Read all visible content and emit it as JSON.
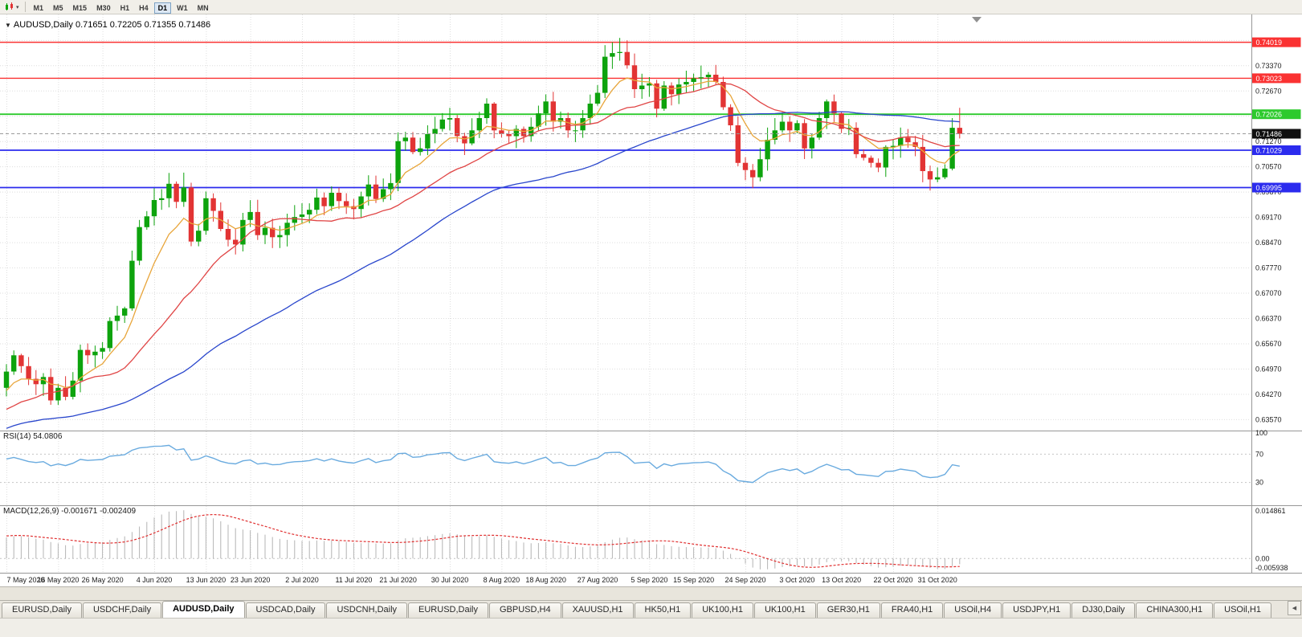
{
  "colors": {
    "bull": "#0da30d",
    "bear": "#e23434",
    "hline_red": "#fa3232",
    "hline_green": "#2dca2d",
    "hline_blue": "#2b2bee",
    "current_price_bg": "#101010",
    "ma_fast": "#e8a53a",
    "ma_mid": "#e04545",
    "ma_slow": "#2946cc",
    "rsi_line": "#6aabdf",
    "macd_hist": "#b4b4b4",
    "macd_signal": "#e03030",
    "grid": "#dedede",
    "axis_text": "#1c1c1c",
    "separator": "#979797"
  },
  "toolbar": {
    "timeframes": [
      "M1",
      "M5",
      "M15",
      "M30",
      "H1",
      "H4",
      "D1",
      "W1",
      "MN"
    ],
    "active": "D1"
  },
  "chart": {
    "symbol": "AUDUSD,Daily",
    "ohlc": "0.71651 0.72205 0.71355 0.71486",
    "dropdown_icon": "▼"
  },
  "rsi": {
    "label": "RSI(14) 54.0806",
    "period": 14,
    "value": 54.0806,
    "levels": [
      70,
      30
    ],
    "axis": [
      {
        "label": "100",
        "value": 100
      },
      {
        "label": "70",
        "value": 70
      },
      {
        "label": "30",
        "value": 30
      }
    ]
  },
  "macd": {
    "label": "MACD(12,26,9) -0.001671 -0.002409",
    "fast": 12,
    "slow": 26,
    "signal_period": 9,
    "main_value": -0.001671,
    "signal_value": -0.002409,
    "axis_max": "0.014861",
    "axis_zero": "0.00",
    "axis_min": "-0.005938"
  },
  "chart_data": {
    "type": "candlestick",
    "symbol": "AUDUSD",
    "timeframe": "Daily",
    "price_range": {
      "min": 0.634,
      "max": 0.747
    },
    "price_axis_ticks": [
      "0.74070",
      "0.73370",
      "0.72670",
      "0.71970",
      "0.71270",
      "0.70570",
      "0.69870",
      "0.69170",
      "0.68470",
      "0.67770",
      "0.67070",
      "0.66370",
      "0.65670",
      "0.64970",
      "0.64270",
      "0.63570"
    ],
    "hlines": [
      {
        "price": 0.74019,
        "label": "0.74019",
        "color_key": "hline_red",
        "width": 1.4
      },
      {
        "price": 0.73023,
        "label": "0.73023",
        "color_key": "hline_red",
        "width": 1.4
      },
      {
        "price": 0.72026,
        "label": "0.72026",
        "color_key": "hline_green",
        "width": 1.8
      },
      {
        "price": 0.71029,
        "label": "0.71029",
        "color_key": "hline_blue",
        "width": 1.8
      },
      {
        "price": 0.69995,
        "label": "0.69995",
        "color_key": "hline_blue",
        "width": 1.8
      }
    ],
    "current_price": {
      "value": 0.71486,
      "label": "0.71486"
    },
    "first_open": 0.616,
    "pre_closes": [
      0.613,
      0.605,
      0.6075,
      0.618,
      0.6185,
      0.632,
      0.6345,
      0.629,
      0.6355,
      0.632,
      0.6285,
      0.6345,
      0.636,
      0.631,
      0.627,
      0.634,
      0.6365,
      0.642,
      0.651,
      0.6565,
      0.651,
      0.6425,
      0.6372,
      0.639,
      0.6445
    ],
    "closes": [
      0.649,
      0.6535,
      0.6505,
      0.647,
      0.6455,
      0.6475,
      0.641,
      0.6445,
      0.642,
      0.6465,
      0.655,
      0.6535,
      0.6545,
      0.6555,
      0.663,
      0.6645,
      0.6665,
      0.6797,
      0.689,
      0.692,
      0.6965,
      0.697,
      0.701,
      0.696,
      0.7,
      0.685,
      0.688,
      0.697,
      0.6935,
      0.6885,
      0.6855,
      0.6842,
      0.691,
      0.6932,
      0.6868,
      0.6888,
      0.6862,
      0.6868,
      0.6902,
      0.6918,
      0.6925,
      0.6938,
      0.6972,
      0.6948,
      0.6985,
      0.6962,
      0.6948,
      0.694,
      0.6975,
      0.7008,
      0.6968,
      0.6995,
      0.7012,
      0.7128,
      0.7138,
      0.7098,
      0.7108,
      0.7148,
      0.7162,
      0.7188,
      0.7192,
      0.7142,
      0.7122,
      0.7158,
      0.7192,
      0.7232,
      0.7158,
      0.7148,
      0.7142,
      0.7162,
      0.7142,
      0.7168,
      0.7205,
      0.7238,
      0.7182,
      0.7192,
      0.7158,
      0.7158,
      0.7192,
      0.7232,
      0.7262,
      0.7362,
      0.7372,
      0.7375,
      0.7338,
      0.7272,
      0.7282,
      0.7288,
      0.7218,
      0.7282,
      0.7258,
      0.7285,
      0.7292,
      0.7302,
      0.7305,
      0.7312,
      0.7292,
      0.7222,
      0.7172,
      0.7068,
      0.7048,
      0.7028,
      0.7078,
      0.7132,
      0.7158,
      0.7182,
      0.7158,
      0.7178,
      0.7108,
      0.7138,
      0.7192,
      0.7238,
      0.7205,
      0.7162,
      0.7165,
      0.7092,
      0.7082,
      0.7068,
      0.7055,
      0.7112,
      0.7115,
      0.7138,
      0.7125,
      0.7112,
      0.7045,
      0.7022,
      0.7028,
      0.7052,
      0.7165,
      0.71486
    ],
    "overrides": {
      "6": {
        "l": 0.6398
      },
      "24": {
        "h": 0.7041
      },
      "82": {
        "h": 0.7402
      },
      "83": {
        "h": 0.7414
      },
      "101": {
        "l": 0.6998
      },
      "125": {
        "l": 0.6991
      },
      "128": {
        "h": 0.7192
      }
    },
    "last_candle": {
      "o": 0.71651,
      "h": 0.72205,
      "l": 0.71355,
      "c": 0.71486
    },
    "date_labels": [
      "7 May 2020",
      "16 May 2020",
      "26 May 2020",
      "4 Jun 2020",
      "13 Jun 2020",
      "23 Jun 2020",
      "2 Jul 2020",
      "11 Jul 2020",
      "21 Jul 2020",
      "30 Jul 2020",
      "8 Aug 2020",
      "18 Aug 2020",
      "27 Aug 2020",
      "5 Sep 2020",
      "15 Sep 2020",
      "24 Sep 2020",
      "3 Oct 2020",
      "13 Oct 2020",
      "22 Oct 2020",
      "31 Oct 2020"
    ],
    "date_indices": [
      0,
      7,
      13,
      20,
      27,
      33,
      40,
      47,
      53,
      60,
      67,
      73,
      80,
      87,
      93,
      100,
      107,
      113,
      120,
      126
    ],
    "moving_averages": [
      {
        "period": 8,
        "method": "ema",
        "color_key": "ma_fast"
      },
      {
        "period": 20,
        "method": "sma",
        "color_key": "ma_mid"
      },
      {
        "period": 50,
        "method": "sma",
        "color_key": "ma_slow"
      }
    ]
  },
  "tabs": {
    "active_index": 2,
    "scroll_icon": "◀",
    "items": [
      {
        "label": "EURUSD,Daily"
      },
      {
        "label": "USDCHF,Daily"
      },
      {
        "label": "AUDUSD,Daily"
      },
      {
        "label": "USDCAD,Daily"
      },
      {
        "label": "USDCNH,Daily"
      },
      {
        "label": "EURUSD,Daily"
      },
      {
        "label": "GBPUSD,H4"
      },
      {
        "label": "XAUUSD,H1"
      },
      {
        "label": "HK50,H1"
      },
      {
        "label": "UK100,H1"
      },
      {
        "label": "UK100,H1"
      },
      {
        "label": "GER30,H1"
      },
      {
        "label": "FRA40,H1"
      },
      {
        "label": "USOil,H4"
      },
      {
        "label": "USDJPY,H1"
      },
      {
        "label": "DJ30,Daily"
      },
      {
        "label": "CHINA300,H1"
      },
      {
        "label": "USOil,H1"
      }
    ]
  }
}
